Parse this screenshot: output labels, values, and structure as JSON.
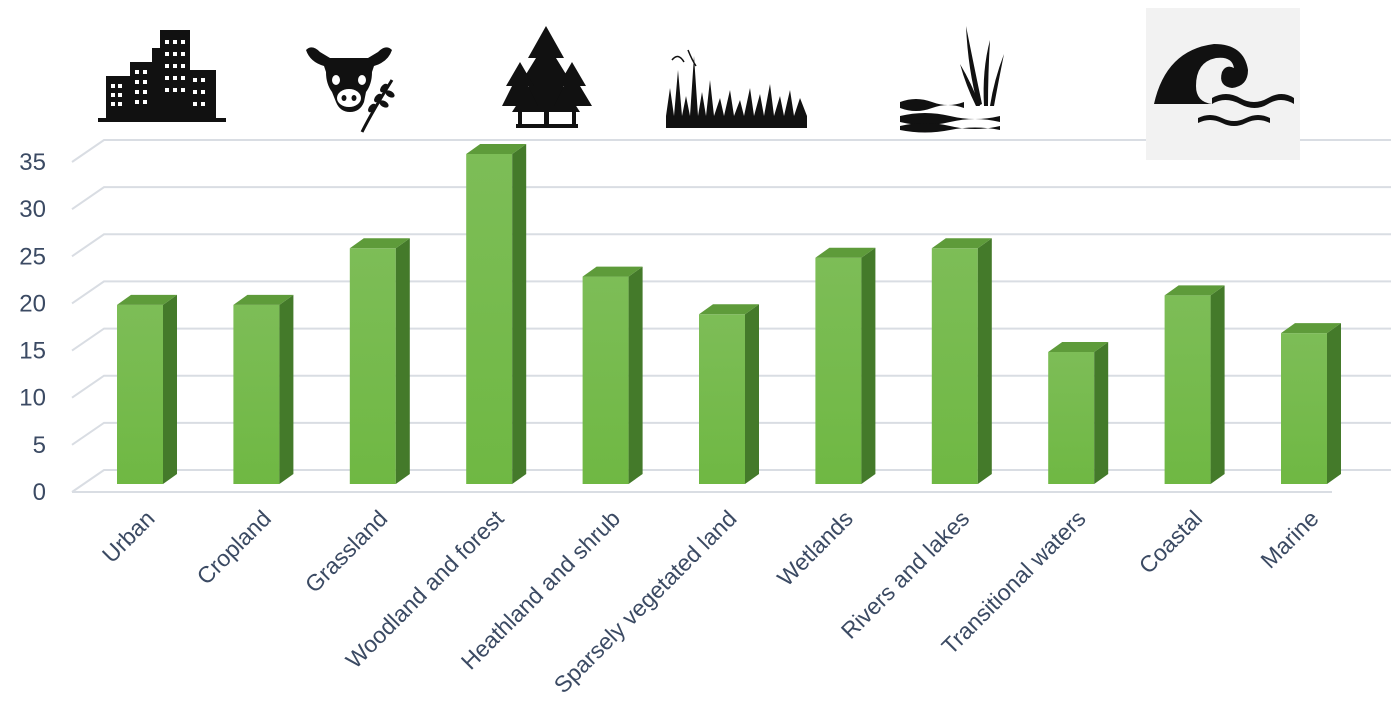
{
  "chart_data": {
    "type": "bar",
    "title": "",
    "xlabel": "",
    "ylabel": "",
    "categories": [
      "Urban",
      "Cropland",
      "Grassland",
      "Woodland and forest",
      "Heathland and shrub",
      "Sparsely vegetated land",
      "Wetlands",
      "Rivers and lakes",
      "Transitional waters",
      "Coastal",
      "Marine"
    ],
    "values": [
      19,
      19,
      25,
      35,
      22,
      18,
      24,
      25,
      14,
      20,
      16
    ],
    "ylim": [
      0,
      35
    ],
    "yticks": [
      0,
      5,
      10,
      15,
      20,
      25,
      30,
      35
    ],
    "grid": true,
    "bar_style": "3d",
    "colors": {
      "bar_front": "#6fb843",
      "bar_side": "#447a2a",
      "bar_top": "#5e9b3a",
      "grid": "#d9dde3",
      "text": "#3b4a63"
    },
    "icons": [
      "city-buildings-icon",
      "cow-wheat-icon",
      "pine-trees-icon",
      "grassland-icon",
      "wetland-reeds-icon",
      "ocean-wave-icon"
    ]
  }
}
